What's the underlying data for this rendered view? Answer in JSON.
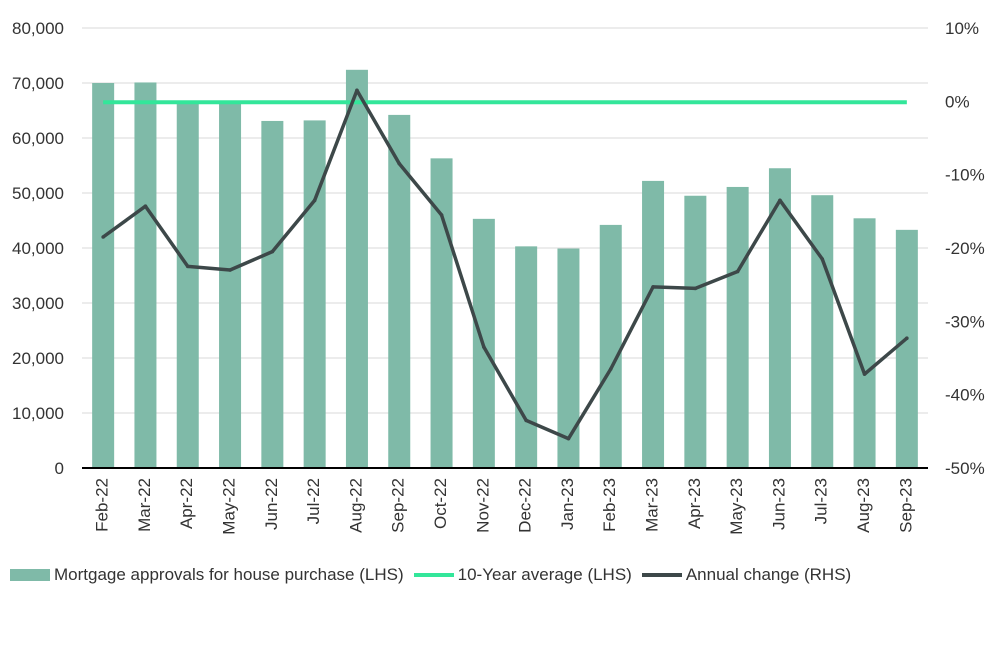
{
  "chart_data": {
    "type": "bar",
    "categories": [
      "Feb-22",
      "Mar-22",
      "Apr-22",
      "May-22",
      "Jun-22",
      "Jul-22",
      "Aug-22",
      "Sep-22",
      "Oct-22",
      "Nov-22",
      "Dec-22",
      "Jan-23",
      "Feb-23",
      "Mar-23",
      "Apr-23",
      "May-23",
      "Jun-23",
      "Jul-23",
      "Aug-23",
      "Sep-23"
    ],
    "series": [
      {
        "name": "Mortgage approvals for house purchase (LHS)",
        "type": "bar",
        "axis": "left",
        "color": "#7fbaa8",
        "values": [
          70000,
          70100,
          66600,
          66700,
          63100,
          63200,
          72400,
          64200,
          56300,
          45300,
          40300,
          39900,
          44200,
          52200,
          49500,
          51100,
          54500,
          49600,
          45400,
          43300
        ]
      },
      {
        "name": "10-Year average (LHS)",
        "type": "line",
        "axis": "left",
        "color": "#33e69a",
        "values": [
          66500,
          66500,
          66500,
          66500,
          66500,
          66500,
          66500,
          66500,
          66500,
          66500,
          66500,
          66500,
          66500,
          66500,
          66500,
          66500,
          66500,
          66500,
          66500,
          66500
        ]
      },
      {
        "name": "Annual change (RHS)",
        "type": "line",
        "axis": "right",
        "color": "#3d4849",
        "values": [
          -18.5,
          -14.3,
          -22.5,
          -23.0,
          -20.5,
          -13.5,
          1.5,
          -8.5,
          -15.5,
          -33.5,
          -43.5,
          -46.0,
          -36.5,
          -25.3,
          -25.5,
          -23.2,
          -13.5,
          -21.5,
          -37.2,
          -32.3
        ]
      }
    ],
    "y_left": {
      "ylim": [
        0,
        80000
      ],
      "ticks": [
        "0",
        "10,000",
        "20,000",
        "30,000",
        "40,000",
        "50,000",
        "60,000",
        "70,000",
        "80,000"
      ]
    },
    "y_right": {
      "ylim": [
        -50,
        10
      ],
      "ticks": [
        "-50%",
        "-40%",
        "-30%",
        "-20%",
        "-10%",
        "0%",
        "10%"
      ]
    },
    "grid": true,
    "legend_position": "bottom"
  }
}
